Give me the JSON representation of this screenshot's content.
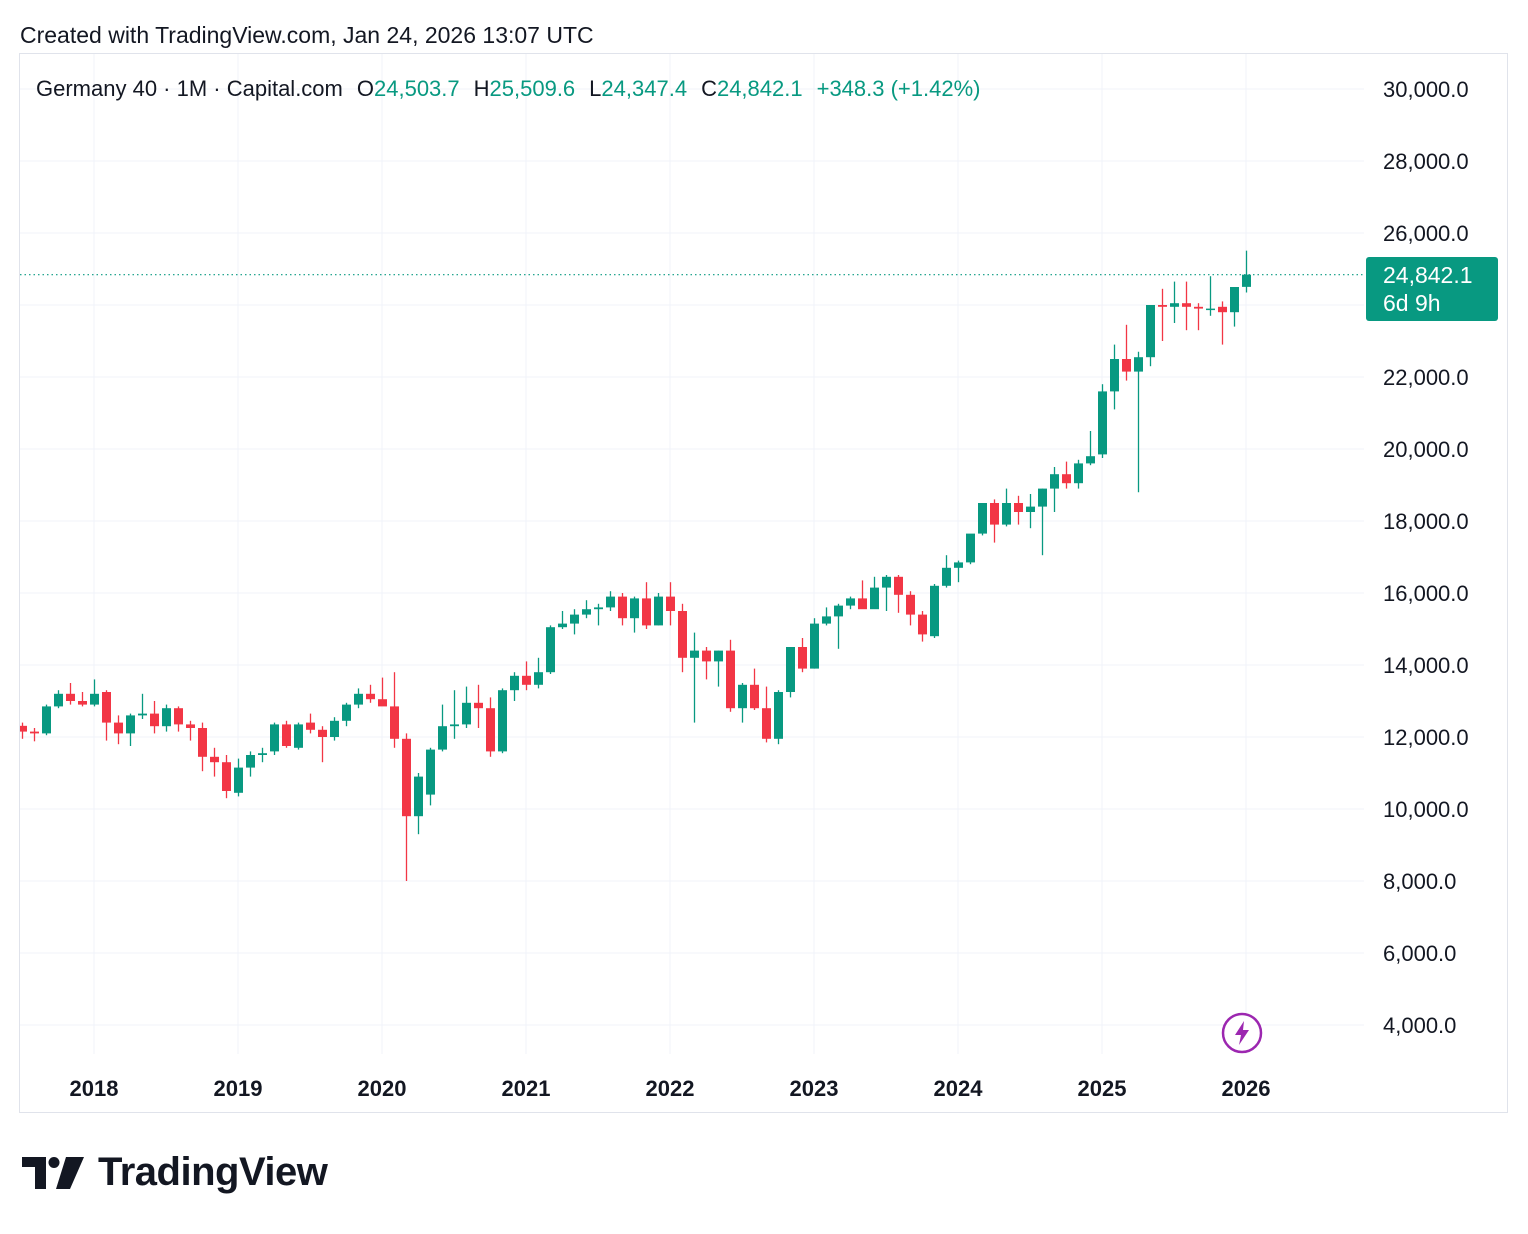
{
  "caption": "Created with TradingView.com, Jan 24, 2026 13:07 UTC",
  "legend": {
    "symbol": "Germany 40 · 1M · Capital.com",
    "o_label": "O",
    "o_value": "24,503.7",
    "h_label": "H",
    "h_value": "25,509.6",
    "l_label": "L",
    "l_value": "24,347.4",
    "c_label": "C",
    "c_value": "24,842.1",
    "change": "+348.3 (+1.42%)"
  },
  "price_label": {
    "price": "24,842.1",
    "countdown": "6d 9h"
  },
  "brand": {
    "name": "TradingView"
  },
  "colors": {
    "up": "#089981",
    "down": "#f23645",
    "grid": "#f0f3fa",
    "text": "#131722",
    "accent_purple": "#9c27b0"
  },
  "chart_data": {
    "type": "candlestick",
    "title": "Germany 40 · 1M · Capital.com",
    "last_price": 24842.1,
    "ylim": [
      3000,
      31000
    ],
    "y_ticks": [
      {
        "value": 4000,
        "label": "4,000.0"
      },
      {
        "value": 6000,
        "label": "6,000.0"
      },
      {
        "value": 8000,
        "label": "8,000.0"
      },
      {
        "value": 10000,
        "label": "10,000.0"
      },
      {
        "value": 12000,
        "label": "12,000.0"
      },
      {
        "value": 14000,
        "label": "14,000.0"
      },
      {
        "value": 16000,
        "label": "16,000.0"
      },
      {
        "value": 18000,
        "label": "18,000.0"
      },
      {
        "value": 20000,
        "label": "20,000.0"
      },
      {
        "value": 22000,
        "label": "22,000.0"
      },
      {
        "value": 26000,
        "label": "26,000.0"
      },
      {
        "value": 28000,
        "label": "28,000.0"
      },
      {
        "value": 30000,
        "label": "30,000.0"
      }
    ],
    "x_start": "2017-07",
    "x_ticks": [
      {
        "label": "2018",
        "month_index": 6
      },
      {
        "label": "2019",
        "month_index": 18
      },
      {
        "label": "2020",
        "month_index": 30
      },
      {
        "label": "2021",
        "month_index": 42
      },
      {
        "label": "2022",
        "month_index": 54
      },
      {
        "label": "2023",
        "month_index": 66
      },
      {
        "label": "2024",
        "month_index": 78
      },
      {
        "label": "2025",
        "month_index": 90
      },
      {
        "label": "2026",
        "month_index": 102
      }
    ],
    "candles": [
      {
        "t": "2017-07",
        "o": 12310,
        "h": 12400,
        "l": 11950,
        "c": 12150
      },
      {
        "t": "2017-08",
        "o": 12150,
        "h": 12250,
        "l": 11880,
        "c": 12100
      },
      {
        "t": "2017-09",
        "o": 12100,
        "h": 12900,
        "l": 12050,
        "c": 12850
      },
      {
        "t": "2017-10",
        "o": 12850,
        "h": 13300,
        "l": 12800,
        "c": 13200
      },
      {
        "t": "2017-11",
        "o": 13200,
        "h": 13500,
        "l": 12900,
        "c": 13000
      },
      {
        "t": "2017-12",
        "o": 13000,
        "h": 13250,
        "l": 12850,
        "c": 12900
      },
      {
        "t": "2018-01",
        "o": 12900,
        "h": 13600,
        "l": 12850,
        "c": 13200
      },
      {
        "t": "2018-02",
        "o": 13250,
        "h": 13300,
        "l": 11900,
        "c": 12400
      },
      {
        "t": "2018-03",
        "o": 12400,
        "h": 12600,
        "l": 11800,
        "c": 12100
      },
      {
        "t": "2018-04",
        "o": 12100,
        "h": 12650,
        "l": 11750,
        "c": 12600
      },
      {
        "t": "2018-05",
        "o": 12600,
        "h": 13200,
        "l": 12500,
        "c": 12650
      },
      {
        "t": "2018-06",
        "o": 12650,
        "h": 13000,
        "l": 12100,
        "c": 12300
      },
      {
        "t": "2018-07",
        "o": 12300,
        "h": 12900,
        "l": 12150,
        "c": 12800
      },
      {
        "t": "2018-08",
        "o": 12800,
        "h": 12850,
        "l": 12150,
        "c": 12350
      },
      {
        "t": "2018-09",
        "o": 12350,
        "h": 12450,
        "l": 11900,
        "c": 12250
      },
      {
        "t": "2018-10",
        "o": 12250,
        "h": 12400,
        "l": 11050,
        "c": 11450
      },
      {
        "t": "2018-11",
        "o": 11450,
        "h": 11700,
        "l": 10900,
        "c": 11300
      },
      {
        "t": "2018-12",
        "o": 11300,
        "h": 11500,
        "l": 10300,
        "c": 10500
      },
      {
        "t": "2019-01",
        "o": 10450,
        "h": 11400,
        "l": 10350,
        "c": 11150
      },
      {
        "t": "2019-02",
        "o": 11150,
        "h": 11600,
        "l": 10900,
        "c": 11500
      },
      {
        "t": "2019-03",
        "o": 11500,
        "h": 11700,
        "l": 11300,
        "c": 11550
      },
      {
        "t": "2019-04",
        "o": 11600,
        "h": 12400,
        "l": 11500,
        "c": 12350
      },
      {
        "t": "2019-05",
        "o": 12350,
        "h": 12450,
        "l": 11700,
        "c": 11750
      },
      {
        "t": "2019-06",
        "o": 11700,
        "h": 12400,
        "l": 11650,
        "c": 12350
      },
      {
        "t": "2019-07",
        "o": 12400,
        "h": 12650,
        "l": 12100,
        "c": 12200
      },
      {
        "t": "2019-08",
        "o": 12200,
        "h": 12300,
        "l": 11300,
        "c": 12000
      },
      {
        "t": "2019-09",
        "o": 12000,
        "h": 12550,
        "l": 11900,
        "c": 12450
      },
      {
        "t": "2019-10",
        "o": 12450,
        "h": 12950,
        "l": 12300,
        "c": 12900
      },
      {
        "t": "2019-11",
        "o": 12900,
        "h": 13350,
        "l": 12800,
        "c": 13200
      },
      {
        "t": "2019-12",
        "o": 13200,
        "h": 13450,
        "l": 12950,
        "c": 13050
      },
      {
        "t": "2020-01",
        "o": 13050,
        "h": 13650,
        "l": 12900,
        "c": 12850
      },
      {
        "t": "2020-02",
        "o": 12850,
        "h": 13800,
        "l": 11700,
        "c": 11950
      },
      {
        "t": "2020-03",
        "o": 11950,
        "h": 12100,
        "l": 8000,
        "c": 9800
      },
      {
        "t": "2020-04",
        "o": 9800,
        "h": 11000,
        "l": 9300,
        "c": 10900
      },
      {
        "t": "2020-05",
        "o": 10400,
        "h": 11700,
        "l": 10100,
        "c": 11650
      },
      {
        "t": "2020-06",
        "o": 11650,
        "h": 12900,
        "l": 11600,
        "c": 12300
      },
      {
        "t": "2020-07",
        "o": 12300,
        "h": 13300,
        "l": 11950,
        "c": 12350
      },
      {
        "t": "2020-08",
        "o": 12350,
        "h": 13400,
        "l": 12250,
        "c": 12950
      },
      {
        "t": "2020-09",
        "o": 12950,
        "h": 13450,
        "l": 12250,
        "c": 12800
      },
      {
        "t": "2020-10",
        "o": 12800,
        "h": 13100,
        "l": 11450,
        "c": 11600
      },
      {
        "t": "2020-11",
        "o": 11600,
        "h": 13350,
        "l": 11550,
        "c": 13300
      },
      {
        "t": "2020-12",
        "o": 13300,
        "h": 13800,
        "l": 13000,
        "c": 13700
      },
      {
        "t": "2021-01",
        "o": 13700,
        "h": 14100,
        "l": 13300,
        "c": 13450
      },
      {
        "t": "2021-02",
        "o": 13450,
        "h": 14200,
        "l": 13350,
        "c": 13800
      },
      {
        "t": "2021-03",
        "o": 13800,
        "h": 15100,
        "l": 13750,
        "c": 15050
      },
      {
        "t": "2021-04",
        "o": 15050,
        "h": 15500,
        "l": 15000,
        "c": 15150
      },
      {
        "t": "2021-05",
        "o": 15150,
        "h": 15550,
        "l": 14850,
        "c": 15400
      },
      {
        "t": "2021-06",
        "o": 15400,
        "h": 15800,
        "l": 15300,
        "c": 15550
      },
      {
        "t": "2021-07",
        "o": 15550,
        "h": 15700,
        "l": 15100,
        "c": 15600
      },
      {
        "t": "2021-08",
        "o": 15600,
        "h": 16050,
        "l": 15500,
        "c": 15900
      },
      {
        "t": "2021-09",
        "o": 15900,
        "h": 16000,
        "l": 15100,
        "c": 15300
      },
      {
        "t": "2021-10",
        "o": 15300,
        "h": 15900,
        "l": 14900,
        "c": 15850
      },
      {
        "t": "2021-11",
        "o": 15850,
        "h": 16300,
        "l": 15000,
        "c": 15100
      },
      {
        "t": "2021-12",
        "o": 15100,
        "h": 16000,
        "l": 15100,
        "c": 15900
      },
      {
        "t": "2022-01",
        "o": 15900,
        "h": 16300,
        "l": 15100,
        "c": 15500
      },
      {
        "t": "2022-02",
        "o": 15500,
        "h": 15700,
        "l": 13800,
        "c": 14200
      },
      {
        "t": "2022-03",
        "o": 14200,
        "h": 14900,
        "l": 12400,
        "c": 14400
      },
      {
        "t": "2022-04",
        "o": 14400,
        "h": 14500,
        "l": 13600,
        "c": 14100
      },
      {
        "t": "2022-05",
        "o": 14100,
        "h": 14400,
        "l": 13400,
        "c": 14400
      },
      {
        "t": "2022-06",
        "o": 14400,
        "h": 14700,
        "l": 12700,
        "c": 12800
      },
      {
        "t": "2022-07",
        "o": 12800,
        "h": 13500,
        "l": 12400,
        "c": 13450
      },
      {
        "t": "2022-08",
        "o": 13450,
        "h": 13900,
        "l": 12750,
        "c": 12800
      },
      {
        "t": "2022-09",
        "o": 12800,
        "h": 13400,
        "l": 11850,
        "c": 11950
      },
      {
        "t": "2022-10",
        "o": 11950,
        "h": 13300,
        "l": 11800,
        "c": 13250
      },
      {
        "t": "2022-11",
        "o": 13250,
        "h": 14500,
        "l": 13100,
        "c": 14500
      },
      {
        "t": "2022-12",
        "o": 14500,
        "h": 14750,
        "l": 13800,
        "c": 13900
      },
      {
        "t": "2023-01",
        "o": 13900,
        "h": 15300,
        "l": 13900,
        "c": 15150
      },
      {
        "t": "2023-02",
        "o": 15150,
        "h": 15600,
        "l": 15100,
        "c": 15350
      },
      {
        "t": "2023-03",
        "o": 15350,
        "h": 15700,
        "l": 14450,
        "c": 15650
      },
      {
        "t": "2023-04",
        "o": 15650,
        "h": 15900,
        "l": 15550,
        "c": 15850
      },
      {
        "t": "2023-05",
        "o": 15850,
        "h": 16350,
        "l": 15600,
        "c": 15550
      },
      {
        "t": "2023-06",
        "o": 15550,
        "h": 16450,
        "l": 15600,
        "c": 16150
      },
      {
        "t": "2023-07",
        "o": 16150,
        "h": 16500,
        "l": 15500,
        "c": 16450
      },
      {
        "t": "2023-08",
        "o": 16450,
        "h": 16500,
        "l": 15450,
        "c": 15950
      },
      {
        "t": "2023-09",
        "o": 15950,
        "h": 16050,
        "l": 15100,
        "c": 15400
      },
      {
        "t": "2023-10",
        "o": 15400,
        "h": 15500,
        "l": 14650,
        "c": 14850
      },
      {
        "t": "2023-11",
        "o": 14800,
        "h": 16250,
        "l": 14750,
        "c": 16200
      },
      {
        "t": "2023-12",
        "o": 16200,
        "h": 17050,
        "l": 16150,
        "c": 16700
      },
      {
        "t": "2024-01",
        "o": 16700,
        "h": 16900,
        "l": 16300,
        "c": 16850
      },
      {
        "t": "2024-02",
        "o": 16850,
        "h": 17600,
        "l": 16800,
        "c": 17650
      },
      {
        "t": "2024-03",
        "o": 17650,
        "h": 18500,
        "l": 17600,
        "c": 18500
      },
      {
        "t": "2024-04",
        "o": 18500,
        "h": 18600,
        "l": 17400,
        "c": 17900
      },
      {
        "t": "2024-05",
        "o": 17900,
        "h": 18900,
        "l": 17850,
        "c": 18500
      },
      {
        "t": "2024-06",
        "o": 18500,
        "h": 18700,
        "l": 17900,
        "c": 18250
      },
      {
        "t": "2024-07",
        "o": 18250,
        "h": 18750,
        "l": 17800,
        "c": 18400
      },
      {
        "t": "2024-08",
        "o": 18400,
        "h": 18900,
        "l": 17050,
        "c": 18900
      },
      {
        "t": "2024-09",
        "o": 18900,
        "h": 19500,
        "l": 18250,
        "c": 19300
      },
      {
        "t": "2024-10",
        "o": 19300,
        "h": 19650,
        "l": 18900,
        "c": 19050
      },
      {
        "t": "2024-11",
        "o": 19050,
        "h": 19700,
        "l": 18900,
        "c": 19600
      },
      {
        "t": "2024-12",
        "o": 19600,
        "h": 20500,
        "l": 19550,
        "c": 19800
      },
      {
        "t": "2025-01",
        "o": 19850,
        "h": 21800,
        "l": 19750,
        "c": 21600
      },
      {
        "t": "2025-02",
        "o": 21600,
        "h": 22900,
        "l": 21100,
        "c": 22500
      },
      {
        "t": "2025-03",
        "o": 22500,
        "h": 23450,
        "l": 21900,
        "c": 22150
      },
      {
        "t": "2025-04",
        "o": 22150,
        "h": 22700,
        "l": 18800,
        "c": 22550
      },
      {
        "t": "2025-05",
        "o": 22550,
        "h": 24000,
        "l": 22300,
        "c": 24000
      },
      {
        "t": "2025-06",
        "o": 24000,
        "h": 24450,
        "l": 23000,
        "c": 23950
      },
      {
        "t": "2025-07",
        "o": 23950,
        "h": 24650,
        "l": 23500,
        "c": 24050
      },
      {
        "t": "2025-08",
        "o": 24050,
        "h": 24650,
        "l": 23300,
        "c": 23950
      },
      {
        "t": "2025-09",
        "o": 23950,
        "h": 24050,
        "l": 23300,
        "c": 23900
      },
      {
        "t": "2025-10",
        "o": 23900,
        "h": 24800,
        "l": 23700,
        "c": 23900
      },
      {
        "t": "2025-11",
        "o": 23950,
        "h": 24100,
        "l": 22900,
        "c": 23800
      },
      {
        "t": "2025-12",
        "o": 23800,
        "h": 24450,
        "l": 23400,
        "c": 24500
      },
      {
        "t": "2026-01",
        "o": 24503.7,
        "h": 25509.6,
        "l": 24347.4,
        "c": 24842.1
      }
    ]
  }
}
